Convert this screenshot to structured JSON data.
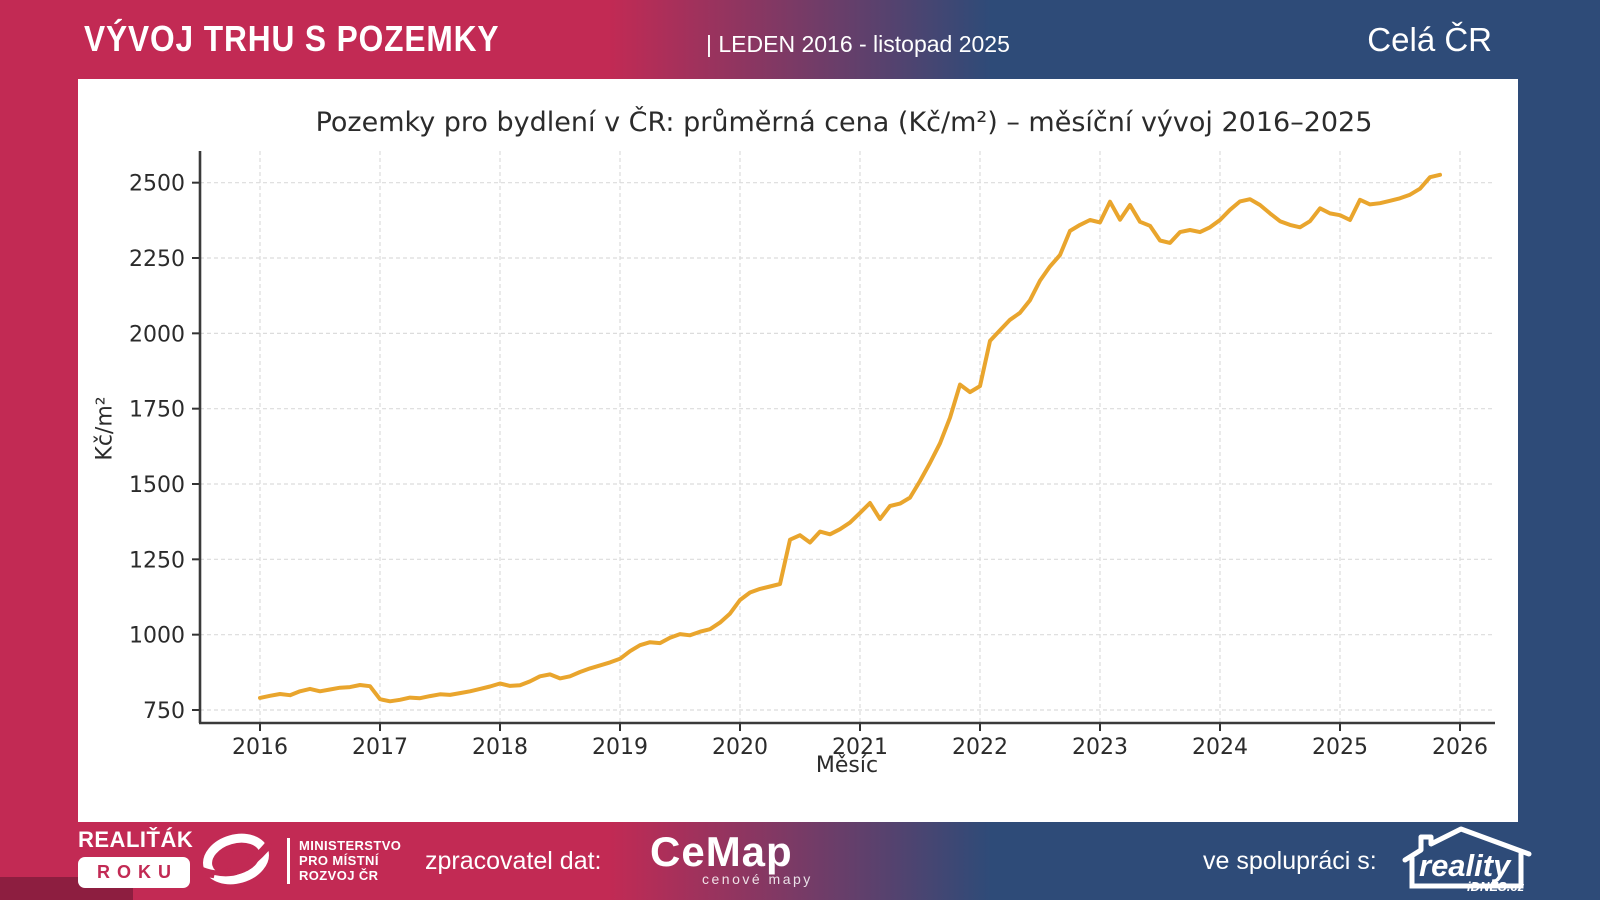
{
  "header": {
    "title": "VÝVOJ TRHU S POZEMKY",
    "subtitle": "| LEDEN 2016 - listopad 2025",
    "region": "Celá ČR"
  },
  "chart_data": {
    "type": "line",
    "title": "Pozemky pro bydlení v ČR: průměrná cena (Kč/m²) – měsíční vývoj 2016–2025",
    "xlabel": "Měsíc",
    "ylabel": "Kč/m²",
    "frequency": "monthly",
    "start_month": "2016-01",
    "end_month": "2025-11",
    "x_tick_labels": [
      "2016",
      "2017",
      "2018",
      "2019",
      "2020",
      "2021",
      "2022",
      "2023",
      "2024",
      "2025",
      "2026"
    ],
    "y_ticks": [
      750,
      1000,
      1250,
      1500,
      1750,
      2000,
      2250,
      2500
    ],
    "ylim": [
      707,
      2600
    ],
    "grid": true,
    "legend": false,
    "line_color": "#E9A52D",
    "values": [
      790,
      797,
      803,
      799,
      812,
      820,
      812,
      818,
      824,
      826,
      833,
      829,
      786,
      779,
      784,
      791,
      789,
      796,
      802,
      800,
      806,
      812,
      820,
      828,
      838,
      830,
      832,
      845,
      862,
      868,
      855,
      862,
      876,
      888,
      898,
      908,
      920,
      945,
      965,
      975,
      972,
      990,
      1002,
      998,
      1010,
      1018,
      1040,
      1070,
      1115,
      1140,
      1152,
      1160,
      1168,
      1315,
      1330,
      1306,
      1342,
      1333,
      1350,
      1372,
      1404,
      1437,
      1384,
      1427,
      1435,
      1455,
      1510,
      1570,
      1635,
      1720,
      1830,
      1805,
      1825,
      1975,
      2010,
      2045,
      2068,
      2110,
      2175,
      2222,
      2260,
      2340,
      2360,
      2376,
      2368,
      2437,
      2377,
      2426,
      2370,
      2357,
      2308,
      2300,
      2336,
      2343,
      2336,
      2352,
      2376,
      2410,
      2438,
      2445,
      2426,
      2398,
      2372,
      2360,
      2352,
      2372,
      2415,
      2398,
      2392,
      2376,
      2443,
      2428,
      2432,
      2440,
      2448,
      2460,
      2480,
      2518,
      2526
    ]
  },
  "footer": {
    "award_logo": {
      "line1": "REALIŤÁK",
      "line2": "ROKU"
    },
    "ministry_logo": {
      "line1": "MINISTERSTVO",
      "line2": "PRO MÍSTNÍ",
      "line3": "ROZVOJ ČR"
    },
    "provider_label": "zpracovatel dat:",
    "cemap_logo": {
      "name": "CeMap",
      "tagline": "cenové mapy"
    },
    "partner_label": "ve spolupráci s:",
    "partner_logo": {
      "name": "reality",
      "domain": "iDNES.cz"
    }
  },
  "colors": {
    "accent_crimson": "#C22A54",
    "accent_navy": "#2E4B78",
    "accent_dark_red": "#8D1E40",
    "line": "#E9A52D",
    "panel": "#FFFFFF",
    "chart_text": "#2B2B2B",
    "grid": "#DCDCDC"
  }
}
